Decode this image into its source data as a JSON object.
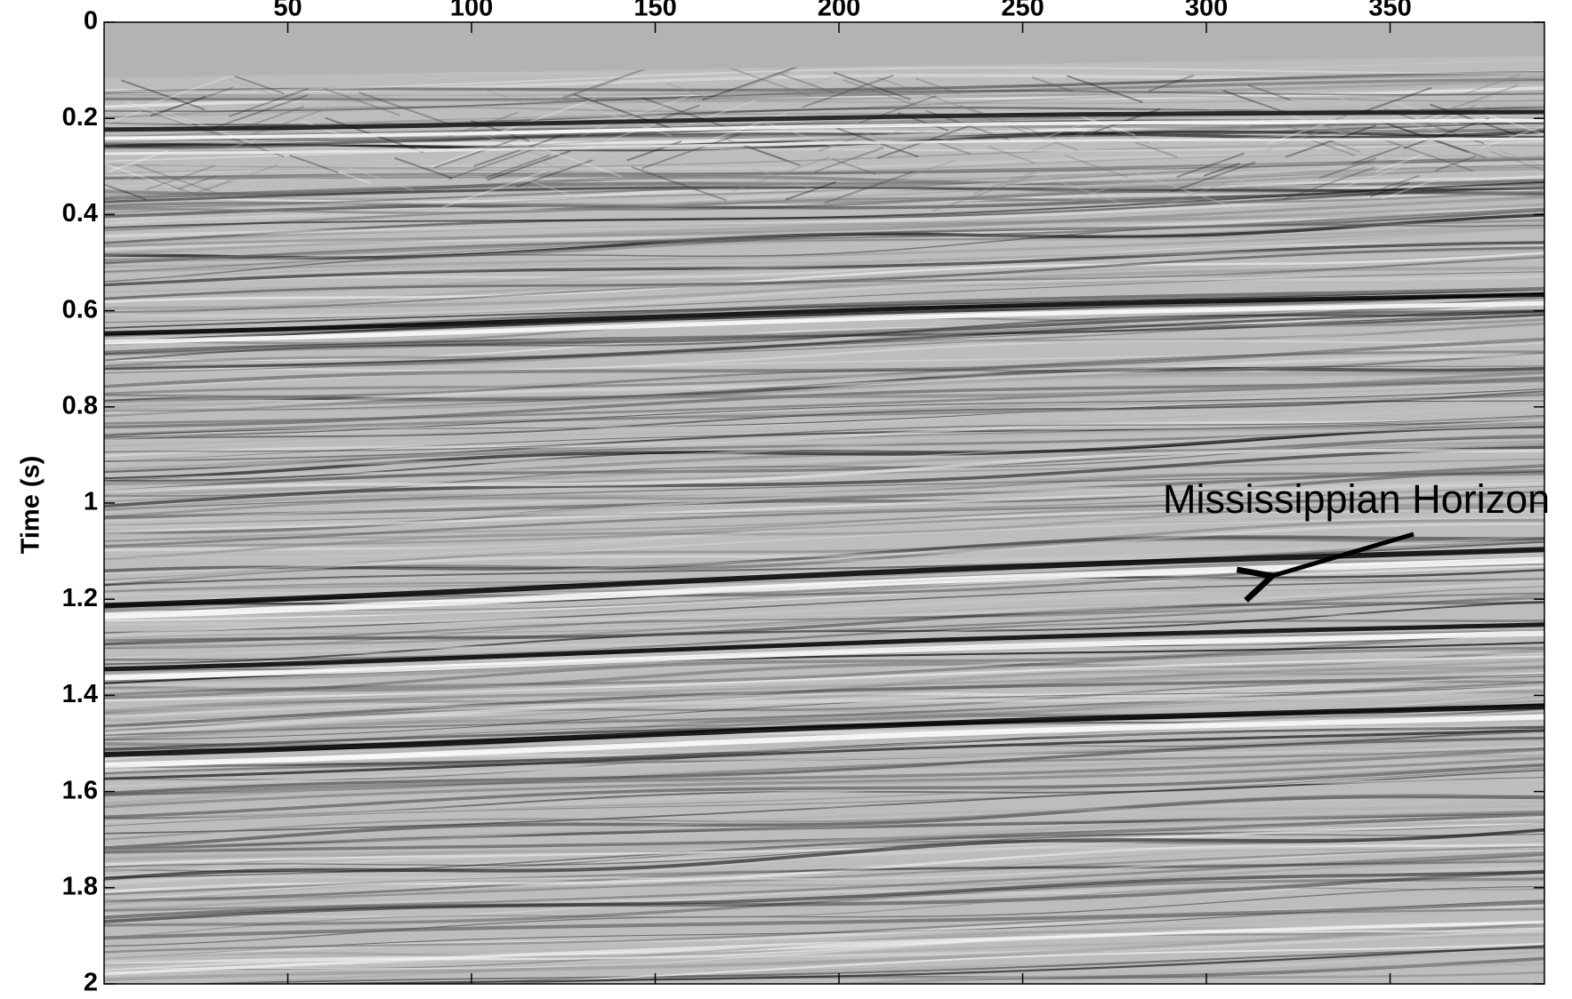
{
  "chart_data": {
    "type": "seismic-section",
    "y_label": "Time (s)",
    "xlim": [
      0,
      392
    ],
    "xticks": [
      50,
      100,
      150,
      200,
      250,
      300,
      350
    ],
    "x_ticks_position": "top",
    "ylim": [
      0,
      2
    ],
    "y_inverted": true,
    "yticks": [
      0,
      0.2,
      0.4,
      0.6,
      0.8,
      1,
      1.2,
      1.4,
      1.6,
      1.8,
      2
    ],
    "annotation": "Mississippian Horizon"
  }
}
